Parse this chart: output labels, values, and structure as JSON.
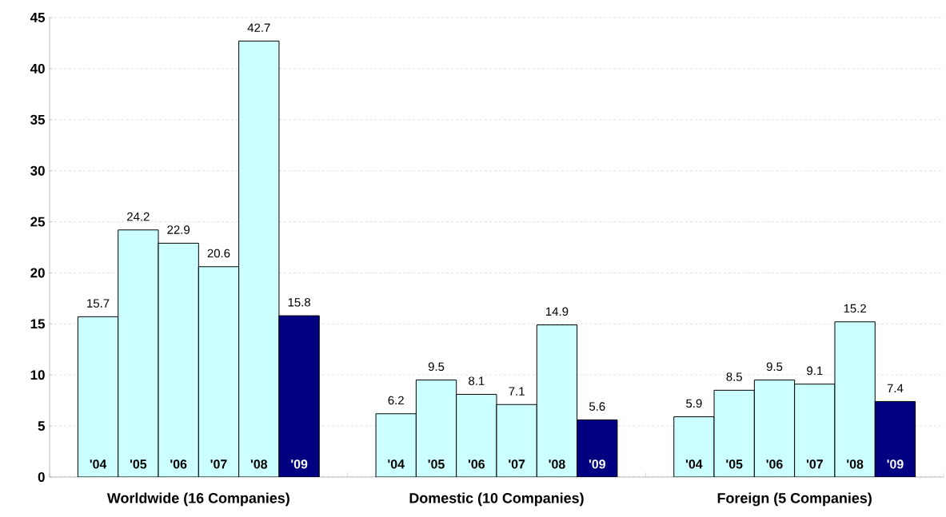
{
  "chart_data": {
    "type": "bar",
    "categories": [
      "Worldwide (16 Companies)",
      "Domestic (10 Companies)",
      "Foreign (5 Companies)"
    ],
    "series": [
      {
        "name": "'04",
        "color": "#ccffff",
        "values": [
          15.7,
          6.2,
          5.9
        ]
      },
      {
        "name": "'05",
        "color": "#ccffff",
        "values": [
          24.2,
          9.5,
          8.5
        ]
      },
      {
        "name": "'06",
        "color": "#ccffff",
        "values": [
          22.9,
          8.1,
          9.5
        ]
      },
      {
        "name": "'07",
        "color": "#ccffff",
        "values": [
          20.6,
          7.1,
          9.1
        ]
      },
      {
        "name": "'08",
        "color": "#ccffff",
        "values": [
          42.7,
          14.9,
          15.2
        ]
      },
      {
        "name": "'09",
        "color": "#000080",
        "values": [
          15.8,
          5.6,
          7.4
        ]
      }
    ],
    "ylim": [
      0,
      45
    ],
    "yticks": [
      0,
      5,
      10,
      15,
      20,
      25,
      30,
      35,
      40,
      45
    ],
    "grid": "y",
    "data_labels": true
  }
}
